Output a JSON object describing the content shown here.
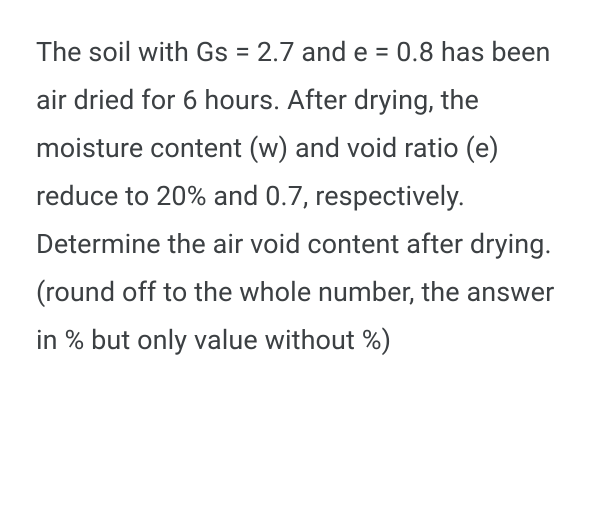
{
  "question": {
    "text": "The soil with Gs = 2.7 and e = 0.8 has been air dried for 6 hours. After drying, the moisture content (w) and void ratio (e) reduce to 20% and 0.7, respectively. Determine the air void content after drying. (round off to the whole number, the answer in % but only value without %)",
    "text_color": "#3c4043",
    "background_color": "#ffffff",
    "font_size_pt": 20,
    "line_height": 1.78,
    "font_family": "Google Sans, Roboto, Arial, sans-serif",
    "font_weight": 400
  }
}
